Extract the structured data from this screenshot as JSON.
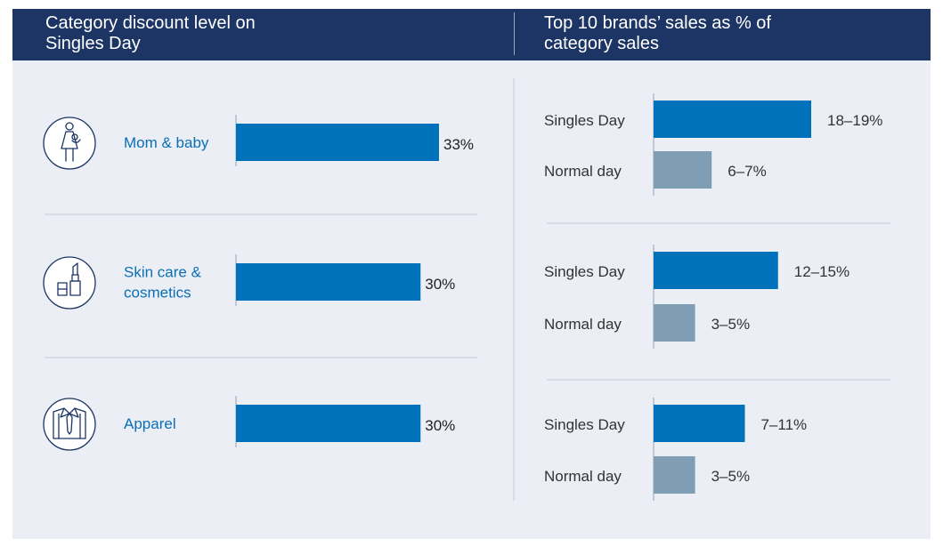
{
  "header": {
    "left_title": "Category discount level on\nSingles Day",
    "right_title": "Top 10 brands’ sales as % of\ncategory sales"
  },
  "colors": {
    "header_bg": "#1c3564",
    "panel_bg": "#ebeef4",
    "primary_bar": "#0072bc",
    "secondary_bar": "#7f9db5",
    "category_text": "#0a6fb5",
    "icon_stroke": "#1c3564"
  },
  "chart_data": [
    {
      "type": "bar",
      "orientation": "horizontal",
      "title": "Category discount level on Singles Day",
      "categories": [
        "Mom & baby",
        "Skin care & cosmetics",
        "Apparel"
      ],
      "category_icons": [
        "mother-baby-icon",
        "lipstick-icon",
        "shirt-tie-icon"
      ],
      "values": [
        33,
        30,
        30
      ],
      "value_labels": [
        "33%",
        "30%",
        "30%"
      ],
      "unit": "%",
      "xlim": [
        0,
        33
      ]
    },
    {
      "type": "bar",
      "orientation": "horizontal",
      "title": "Top 10 brands’ sales as % of category sales",
      "groups": [
        {
          "bars": [
            {
              "label": "Singles Day",
              "range": [
                18,
                19
              ],
              "value_label": "18–19%"
            },
            {
              "label": "Normal day",
              "range": [
                6,
                7
              ],
              "value_label": "6–7%"
            }
          ]
        },
        {
          "bars": [
            {
              "label": "Singles Day",
              "range": [
                12,
                15
              ],
              "value_label": "12–15%"
            },
            {
              "label": "Normal day",
              "range": [
                3,
                5
              ],
              "value_label": "3–5%"
            }
          ]
        },
        {
          "bars": [
            {
              "label": "Singles Day",
              "range": [
                7,
                11
              ],
              "value_label": "7–11%"
            },
            {
              "label": "Normal day",
              "range": [
                3,
                5
              ],
              "value_label": "3–5%"
            }
          ]
        }
      ],
      "unit": "%",
      "xlim": [
        0,
        19
      ]
    }
  ]
}
